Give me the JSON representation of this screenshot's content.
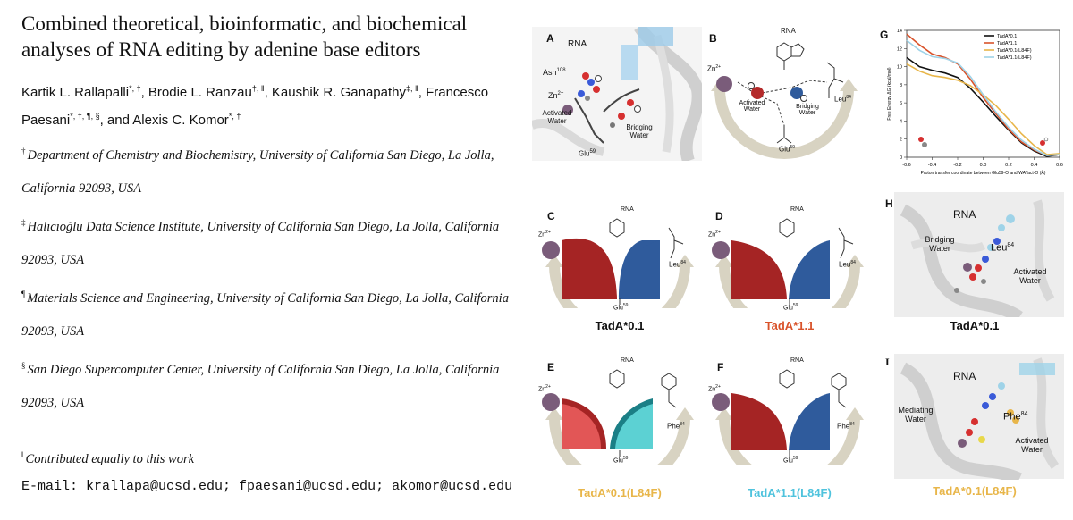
{
  "title": "Combined theoretical, bioinformatic, and biochemical analyses of RNA editing by adenine base editors",
  "authors": [
    {
      "name": "Kartik L. Rallapalli",
      "marks": "*, †"
    },
    {
      "name": "Brodie L. Ranzau",
      "marks": "†, ‖"
    },
    {
      "name": "Kaushik R. Ganapathy",
      "marks": "‡, ‖"
    },
    {
      "name": "Francesco Paesani",
      "marks": "*, †, ¶, §"
    },
    {
      "name": "Alexis C. Komor",
      "marks": "*, †"
    }
  ],
  "authors_text": {
    "a1": "Kartik L. Rallapalli",
    "m1": "*, †",
    "a2": ", Brodie L. Ranzau",
    "m2": "†, ‖",
    "a3": ", Kaushik R. Ganapathy",
    "m3": "‡, ‖",
    "a4": ", Francesco",
    "a4b": "Paesani",
    "m4": "*, †, ¶, §",
    "a5": ", and Alexis C. Komor",
    "m5": "*, †"
  },
  "affiliations": [
    {
      "mark": "†",
      "line1": "Department of Chemistry and Biochemistry, University of California San Diego, La Jolla,",
      "line2": "California 92093, USA"
    },
    {
      "mark": "‡",
      "line1": "Halıcıoğlu Data Science Institute, University of California San Diego, La Jolla, California",
      "line2": "92093, USA"
    },
    {
      "mark": "¶",
      "line1": "Materials Science and Engineering, University of California San Diego, La Jolla, California",
      "line2": "92093, USA"
    },
    {
      "mark": "§",
      "line1": "San Diego Supercomputer Center, University of California San Diego, La Jolla, California",
      "line2": "92093, USA"
    }
  ],
  "contribution": {
    "mark": "‖",
    "text": "Contributed equally to this work"
  },
  "email": "E-mail: krallapa@ucsd.edu; fpaesani@ucsd.edu; akomor@ucsd.edu",
  "figure": {
    "panel_letters": {
      "A": "A",
      "B": "B",
      "C": "C",
      "D": "D",
      "E": "E",
      "F": "F",
      "G": "G",
      "H": "H",
      "I": "I"
    },
    "captions": {
      "C": "TadA*0.1",
      "D": "TadA*1.1",
      "E": "TadA*0.1(L84F)",
      "F": "TadA*1.1(L84F)",
      "H": "TadA*0.1",
      "I": "TadA*0.1(L84F)"
    },
    "caption_colors": {
      "C": "#111111",
      "D": "#d9532b",
      "E": "#e8b64a",
      "F": "#4fc3dd",
      "H": "#111111",
      "I": "#e8b64a"
    },
    "labels": {
      "rna": "RNA",
      "asn": "Asn",
      "asn_num": "108",
      "zn": "Zn",
      "zn_sup": "2+",
      "activated_water": "Activated Water",
      "bridging_water": "Bridging Water",
      "mediating_water": "Mediating Water",
      "glu": "Glu",
      "glu_num": "59",
      "leu": "Leu",
      "leu_num": "84",
      "phe": "Phe",
      "phe_num": "84",
      "nh2": "NH",
      "nh2_sub": "2"
    },
    "colors": {
      "red": "#a52424",
      "blue": "#2f5b9c",
      "light_red": "#e25656",
      "teal": "#5cd1d3",
      "arc": "#d8d3c2",
      "zinc": "#7a5c7a"
    }
  },
  "chart_data": {
    "type": "line",
    "title": "",
    "xlabel": "Proton transfer coordinate between Glu59-O and WATact-O (Å)",
    "ylabel": "Free Energy ΔG (kcal/mol)",
    "xlim": [
      -0.6,
      0.6
    ],
    "ylim": [
      0,
      14
    ],
    "xticks": [
      -0.6,
      -0.4,
      -0.2,
      0.0,
      0.2,
      0.4,
      0.6
    ],
    "yticks": [
      0,
      2,
      4,
      6,
      8,
      10,
      12,
      14
    ],
    "legend": "top-right",
    "series": [
      {
        "name": "TadA*0.1",
        "color": "#111111",
        "x": [
          -0.6,
          -0.5,
          -0.4,
          -0.3,
          -0.2,
          -0.1,
          0.0,
          0.1,
          0.2,
          0.3,
          0.4,
          0.5,
          0.6
        ],
        "y": [
          11.0,
          10.0,
          9.6,
          9.3,
          8.8,
          7.6,
          6.1,
          4.5,
          3.0,
          1.6,
          0.7,
          0.1,
          0.3
        ]
      },
      {
        "name": "TadA*1.1",
        "color": "#d9532b",
        "x": [
          -0.6,
          -0.5,
          -0.4,
          -0.3,
          -0.2,
          -0.1,
          0.0,
          0.1,
          0.2,
          0.3,
          0.4,
          0.5,
          0.6
        ],
        "y": [
          13.6,
          12.4,
          11.4,
          11.0,
          10.3,
          8.6,
          6.6,
          4.8,
          3.1,
          1.7,
          0.8,
          0.2,
          0.3
        ]
      },
      {
        "name": "TadA*0.1(L84F)",
        "color": "#e8b64a",
        "x": [
          -0.6,
          -0.5,
          -0.4,
          -0.3,
          -0.2,
          -0.1,
          0.0,
          0.1,
          0.2,
          0.3,
          0.4,
          0.5,
          0.6
        ],
        "y": [
          10.3,
          9.5,
          9.0,
          8.8,
          8.5,
          7.9,
          6.9,
          5.7,
          4.2,
          2.6,
          1.3,
          0.3,
          0.4
        ]
      },
      {
        "name": "TadA*1.1(L84F)",
        "color": "#9fd3e8",
        "x": [
          -0.6,
          -0.5,
          -0.4,
          -0.3,
          -0.2,
          -0.1,
          0.0,
          0.1,
          0.2,
          0.3,
          0.4,
          0.5,
          0.6
        ],
        "y": [
          12.9,
          11.8,
          11.1,
          10.9,
          10.4,
          8.9,
          6.9,
          5.0,
          3.3,
          1.9,
          0.9,
          0.2,
          0.3
        ]
      }
    ]
  }
}
